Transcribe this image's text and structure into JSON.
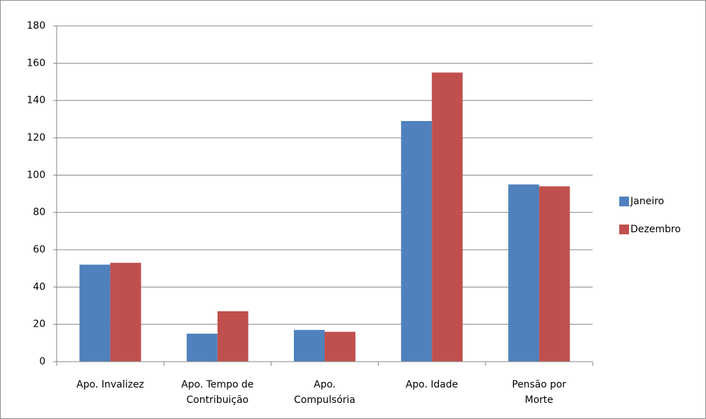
{
  "chart_data": {
    "type": "bar",
    "categories": [
      "Apo. Invalizez",
      "Apo. Tempo de\nContribuição",
      "Apo.\nCompulsória",
      "Apo. Idade",
      "Pensão por\nMorte"
    ],
    "series": [
      {
        "name": "Janeiro",
        "color": "#4f81bd",
        "values": [
          52,
          15,
          17,
          129,
          95
        ]
      },
      {
        "name": "Dezembro",
        "color": "#c0504d",
        "values": [
          53,
          27,
          16,
          155,
          94
        ]
      }
    ],
    "ylim": [
      0,
      180
    ],
    "yticks": [
      0,
      20,
      40,
      60,
      80,
      100,
      120,
      140,
      160,
      180
    ],
    "grid": true,
    "legend": "right"
  }
}
